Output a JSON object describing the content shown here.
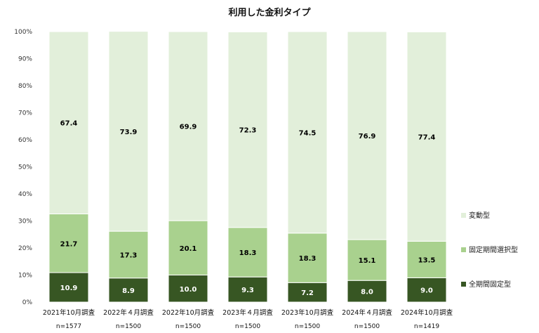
{
  "chart_data": {
    "type": "bar",
    "stacked": true,
    "title": "利用した金利タイプ",
    "categories": [
      "2021年10月調査",
      "2022年４月調査",
      "2022年10月調査",
      "2023年４月調査",
      "2023年10月調査",
      "2024年４月調査",
      "2024年10月調査"
    ],
    "sample_sizes": [
      "n=1577",
      "n=1500",
      "n=1500",
      "n=1500",
      "n=1500",
      "n=1500",
      "n=1419"
    ],
    "series": [
      {
        "name": "全期間固定型",
        "color": "#375623",
        "label_color": "#ffffff",
        "values": [
          10.9,
          8.9,
          10.0,
          9.3,
          7.2,
          8.0,
          9.0
        ]
      },
      {
        "name": "固定期間選択型",
        "color": "#a9d18e",
        "label_color": "#000000",
        "values": [
          21.7,
          17.3,
          20.1,
          18.3,
          18.3,
          15.1,
          13.5
        ]
      },
      {
        "name": "変動型",
        "color": "#e2efda",
        "label_color": "#000000",
        "values": [
          67.4,
          73.9,
          69.9,
          72.3,
          74.5,
          76.9,
          77.4
        ]
      }
    ],
    "y_ticks": [
      "0%",
      "10%",
      "20%",
      "30%",
      "40%",
      "50%",
      "60%",
      "70%",
      "80%",
      "90%",
      "100%"
    ],
    "ylim": [
      0,
      100
    ],
    "grid": false,
    "legend_position": "right"
  }
}
